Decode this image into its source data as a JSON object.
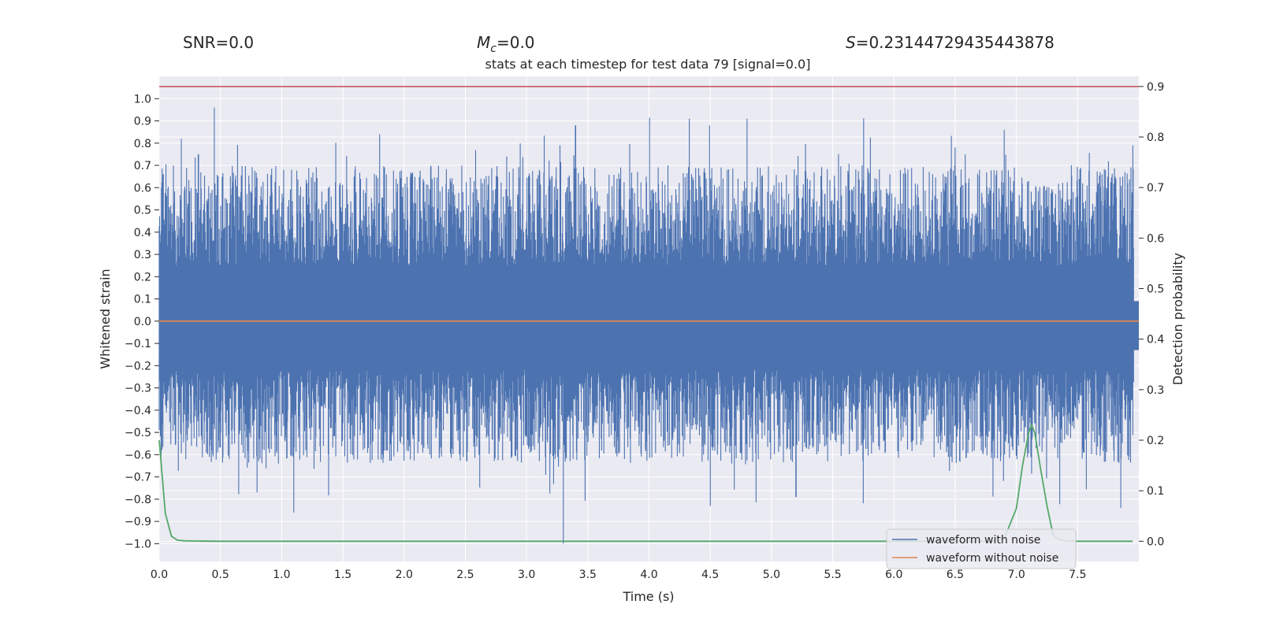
{
  "header": {
    "snr": "SNR=0.0",
    "mc_symbol": "M",
    "mc_subscript": "c",
    "mc_value": "=0.0",
    "s_symbol": "S",
    "s_value": "=0.23144729435443878"
  },
  "chart_data": {
    "type": "line",
    "title": "stats at each timestep for test data 79 [signal=0.0]",
    "xlabel": "Time (s)",
    "ylabel": "Whitened strain",
    "y2label": "Detection probability",
    "xlim": [
      0.0,
      8.0
    ],
    "ylim": [
      -1.08,
      1.1
    ],
    "y2lim": [
      -0.04,
      0.92
    ],
    "xticks": [
      0.0,
      0.5,
      1.0,
      1.5,
      2.0,
      2.5,
      3.0,
      3.5,
      4.0,
      4.5,
      5.0,
      5.5,
      6.0,
      6.5,
      7.0,
      7.5
    ],
    "xtick_labels": [
      "0.0",
      "0.5",
      "1.0",
      "1.5",
      "2.0",
      "2.5",
      "3.0",
      "3.5",
      "4.0",
      "4.5",
      "5.0",
      "5.5",
      "6.0",
      "6.5",
      "7.0",
      "7.5"
    ],
    "yticks": [
      1.0,
      0.9,
      0.8,
      0.7,
      0.6,
      0.5,
      0.4,
      0.3,
      0.2,
      0.1,
      0.0,
      -0.1,
      -0.2,
      -0.3,
      -0.4,
      -0.5,
      -0.6,
      -0.7,
      -0.8,
      -0.9,
      -1.0
    ],
    "ytick_labels": [
      "1.0",
      "0.9",
      "0.8",
      "0.7",
      "0.6",
      "0.5",
      "0.4",
      "0.3",
      "0.2",
      "0.1",
      "0.0",
      "−0.1",
      "−0.2",
      "−0.3",
      "−0.4",
      "−0.5",
      "−0.6",
      "−0.7",
      "−0.8",
      "−0.9",
      "−1.0"
    ],
    "y2ticks": [
      0.9,
      0.8,
      0.7,
      0.6,
      0.5,
      0.4,
      0.3,
      0.2,
      0.1,
      0.0
    ],
    "y2tick_labels": [
      "0.9",
      "0.8",
      "0.7",
      "0.6",
      "0.5",
      "0.4",
      "0.3",
      "0.2",
      "0.1",
      "0.0"
    ],
    "grid": true,
    "legend": {
      "location": "lower-right",
      "entries": [
        "waveform with noise",
        "waveform without noise"
      ]
    },
    "threshold": {
      "axis": "y2",
      "value": 0.9,
      "color": "#c44e52"
    },
    "noise_envelope": {
      "core_range": [
        -0.13,
        0.09
      ],
      "typical_max": 0.45,
      "typical_min": -0.42,
      "peak_max": 0.96,
      "peak_min": -1.0,
      "peaks": [
        {
          "x": 0.18,
          "y": 0.82
        },
        {
          "x": 0.45,
          "y": 0.96
        },
        {
          "x": 0.32,
          "y": 0.75
        },
        {
          "x": 1.8,
          "y": 0.84
        },
        {
          "x": 3.4,
          "y": 0.88
        },
        {
          "x": 4.8,
          "y": 0.91
        },
        {
          "x": 6.5,
          "y": 0.78
        },
        {
          "x": 6.9,
          "y": 0.86
        },
        {
          "x": 7.95,
          "y": 0.79
        },
        {
          "x": 3.3,
          "y": -1.0
        },
        {
          "x": 1.1,
          "y": -0.86
        },
        {
          "x": 4.5,
          "y": -0.83
        },
        {
          "x": 5.2,
          "y": -0.79
        },
        {
          "x": 0.8,
          "y": -0.77
        }
      ]
    },
    "series": [
      {
        "name": "waveform with noise",
        "axis": "y",
        "color": "#4c72b0",
        "style": "dense noise"
      },
      {
        "name": "waveform without noise",
        "axis": "y",
        "color": "#dd8452",
        "x": [
          0.0,
          8.0
        ],
        "y": [
          0.0,
          0.0
        ]
      },
      {
        "name": "detection probability",
        "axis": "y2",
        "color": "#55a868",
        "x": [
          0.0,
          0.05,
          0.1,
          0.15,
          0.2,
          0.3,
          0.5,
          1.0,
          2.0,
          4.0,
          6.0,
          6.6,
          6.8,
          6.9,
          7.0,
          7.05,
          7.1,
          7.125,
          7.15,
          7.2,
          7.25,
          7.3,
          7.35,
          7.4,
          7.5,
          7.95
        ],
        "y": [
          0.2,
          0.055,
          0.01,
          0.002,
          0.001,
          0.0005,
          0.0,
          0.0,
          0.0,
          0.0,
          0.0,
          0.0,
          0.0,
          0.005,
          0.065,
          0.15,
          0.215,
          0.23,
          0.215,
          0.14,
          0.07,
          0.012,
          0.003,
          0.001,
          0.0,
          0.0
        ]
      }
    ]
  }
}
